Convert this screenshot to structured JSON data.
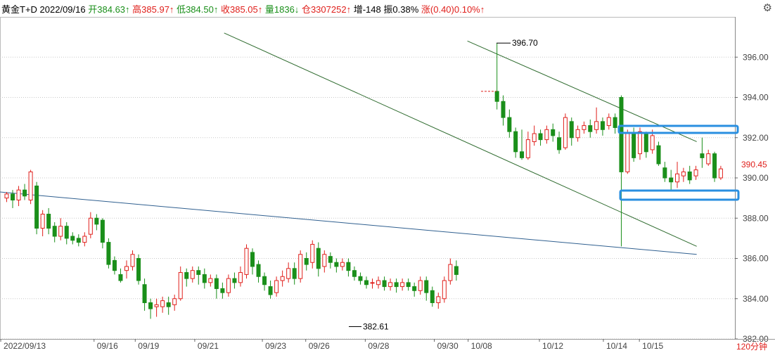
{
  "header": {
    "name": "黄金T+D",
    "date": "2022/09/16",
    "open_label": "开",
    "open": "384.63↑",
    "high_label": "高",
    "high": "385.97↑",
    "low_label": "低",
    "low": "384.50↑",
    "close_label": "收",
    "close": "385.05↑",
    "vol_label": "量",
    "vol": "1836↓",
    "oi_label": "仓",
    "oi": "3307252↑",
    "inc_label": "增",
    "inc": "-148",
    "amp_label": "振",
    "amp": "0.38%",
    "chg_label": "涨",
    "chg": "(0.40)0.10%↑"
  },
  "period": "120分钟",
  "colors": {
    "up": "#e0201c",
    "down": "#1a8f1a",
    "trend": "#2e6b2e",
    "support": "#2f5f8f",
    "box": "#2a8fe0"
  },
  "chart_data": {
    "type": "candlestick",
    "ylim": [
      382,
      398
    ],
    "y_ticks": [
      "396.00",
      "394.00",
      "392.00",
      "390.00",
      "388.00",
      "386.00",
      "384.00",
      "382.00"
    ],
    "x_labels": [
      "2022/09/13",
      "09/16",
      "09/19",
      "09/21",
      "09/23",
      "09/26",
      "09/28",
      "09/30",
      "10/08",
      "10/12",
      "10/14",
      "10/15"
    ],
    "last_price": "390.45",
    "annotations": [
      {
        "text": "396.70",
        "value": 396.7
      },
      {
        "text": "382.61",
        "value": 382.61
      }
    ],
    "bars": [
      [
        389.0,
        389.2,
        388.8,
        389.3
      ],
      [
        389.2,
        388.9,
        388.5,
        389.4
      ],
      [
        388.9,
        389.4,
        388.6,
        389.6
      ],
      [
        389.4,
        389.1,
        388.9,
        389.7
      ],
      [
        388.9,
        390.3,
        388.7,
        390.4
      ],
      [
        389.6,
        387.5,
        387.2,
        389.8
      ],
      [
        387.5,
        388.2,
        387.1,
        388.4
      ],
      [
        388.2,
        387.5,
        387.2,
        388.5
      ],
      [
        387.6,
        387.1,
        386.8,
        387.8
      ],
      [
        387.1,
        387.6,
        386.9,
        388.0
      ],
      [
        387.6,
        387.0,
        386.7,
        387.8
      ],
      [
        387.1,
        386.9,
        386.7,
        387.3
      ],
      [
        387.0,
        386.8,
        386.6,
        387.2
      ],
      [
        386.8,
        387.1,
        386.6,
        387.3
      ],
      [
        387.2,
        388.0,
        387.0,
        388.3
      ],
      [
        388.0,
        387.7,
        387.4,
        388.2
      ],
      [
        387.9,
        386.8,
        386.5,
        388.0
      ],
      [
        386.8,
        385.7,
        385.5,
        387.0
      ],
      [
        385.9,
        385.4,
        385.2,
        386.1
      ],
      [
        385.2,
        384.9,
        384.8,
        385.5
      ],
      [
        385.4,
        385.6,
        385.0,
        385.9
      ],
      [
        385.6,
        386.2,
        385.4,
        386.4
      ],
      [
        386.0,
        384.9,
        384.7,
        386.2
      ],
      [
        384.7,
        383.8,
        383.4,
        385.0
      ],
      [
        383.8,
        383.5,
        383.0,
        384.0
      ],
      [
        383.6,
        383.7,
        383.1,
        384.0
      ],
      [
        383.6,
        383.9,
        383.3,
        384.1
      ],
      [
        383.8,
        383.6,
        383.2,
        384.1
      ],
      [
        383.7,
        384.0,
        383.4,
        384.2
      ],
      [
        384.0,
        385.3,
        383.9,
        385.6
      ],
      [
        385.3,
        385.0,
        384.6,
        385.5
      ],
      [
        385.0,
        385.4,
        384.8,
        385.6
      ],
      [
        385.4,
        385.2,
        384.7,
        385.6
      ],
      [
        385.2,
        384.8,
        384.5,
        385.5
      ],
      [
        384.8,
        385.0,
        384.6,
        385.2
      ],
      [
        385.0,
        384.5,
        384.0,
        385.2
      ],
      [
        384.5,
        384.3,
        384.0,
        384.8
      ],
      [
        384.3,
        385.0,
        384.1,
        385.2
      ],
      [
        385.0,
        384.8,
        384.5,
        385.3
      ],
      [
        384.8,
        385.3,
        384.6,
        385.6
      ],
      [
        385.2,
        386.5,
        385.0,
        386.7
      ],
      [
        386.3,
        385.6,
        385.2,
        386.5
      ],
      [
        385.7,
        385.1,
        384.8,
        385.9
      ],
      [
        385.1,
        384.7,
        384.4,
        385.3
      ],
      [
        384.6,
        384.2,
        384.0,
        384.9
      ],
      [
        384.3,
        384.9,
        384.1,
        385.1
      ],
      [
        384.9,
        385.1,
        384.6,
        385.4
      ],
      [
        385.0,
        385.5,
        384.8,
        385.8
      ],
      [
        385.5,
        385.0,
        384.7,
        385.8
      ],
      [
        385.0,
        386.2,
        384.8,
        386.4
      ],
      [
        386.0,
        385.7,
        385.4,
        386.3
      ],
      [
        385.8,
        386.7,
        385.5,
        386.9
      ],
      [
        386.5,
        385.5,
        385.1,
        386.8
      ],
      [
        385.6,
        386.2,
        385.3,
        386.4
      ],
      [
        386.1,
        385.8,
        385.5,
        386.3
      ],
      [
        385.8,
        385.6,
        385.3,
        386.0
      ],
      [
        385.6,
        385.8,
        385.4,
        386.0
      ],
      [
        385.8,
        385.4,
        385.1,
        386.0
      ],
      [
        385.4,
        385.1,
        384.9,
        385.6
      ],
      [
        385.1,
        384.9,
        384.7,
        385.3
      ],
      [
        384.9,
        384.7,
        384.5,
        385.1
      ],
      [
        384.8,
        384.8,
        384.5,
        385.0
      ],
      [
        384.7,
        384.9,
        384.5,
        385.1
      ],
      [
        384.9,
        384.6,
        384.4,
        385.1
      ],
      [
        384.6,
        384.8,
        384.4,
        385.0
      ],
      [
        384.8,
        384.6,
        384.3,
        385.0
      ],
      [
        384.6,
        384.8,
        384.4,
        385.0
      ],
      [
        384.8,
        384.6,
        384.4,
        385.0
      ],
      [
        384.6,
        384.4,
        384.1,
        384.8
      ],
      [
        384.4,
        384.9,
        384.2,
        385.1
      ],
      [
        384.9,
        384.3,
        383.9,
        385.1
      ],
      [
        384.4,
        383.8,
        383.6,
        384.6
      ],
      [
        383.8,
        384.1,
        383.5,
        384.3
      ],
      [
        384.0,
        384.9,
        383.8,
        385.1
      ],
      [
        384.9,
        385.7,
        384.7,
        386.0
      ],
      [
        385.6,
        385.2,
        384.9,
        385.9
      ]
    ],
    "trendlines": [
      {
        "name": "upper-trend",
        "from": [
          0.305,
          397.2
        ],
        "to": [
          0.948,
          386.6
        ]
      },
      {
        "name": "support-line",
        "from": [
          0.0,
          389.3
        ],
        "to": [
          0.948,
          386.2
        ]
      },
      {
        "name": "channel-top",
        "from": [
          0.636,
          396.8
        ],
        "to": [
          0.948,
          391.8
        ]
      }
    ]
  }
}
